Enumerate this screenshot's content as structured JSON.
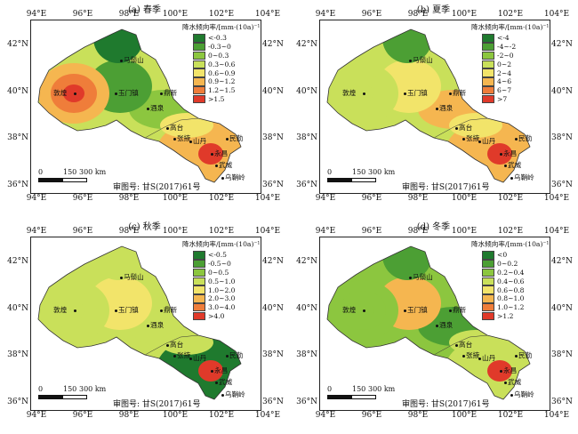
{
  "lon_ticks": [
    "94°E",
    "96°E",
    "98°E",
    "100°E",
    "102°E",
    "104°E"
  ],
  "lat_ticks": [
    "42°N",
    "40°N",
    "38°N",
    "36°N"
  ],
  "scale_labels": [
    "0",
    "150",
    "300 km"
  ],
  "audit_number": "审图号: 甘S(2017)61号",
  "panels": [
    {
      "id": "a",
      "title": "(a) 春季",
      "legend_title": "降水倾向率/[mm·(10a)⁻¹]",
      "legend": [
        {
          "label": "<-0.3",
          "color": "#1f7a2e"
        },
        {
          "label": "-0.3~0",
          "color": "#4c9f34"
        },
        {
          "label": "0~0.3",
          "color": "#8cc63f"
        },
        {
          "label": "0.3~0.6",
          "color": "#c9e05a"
        },
        {
          "label": "0.6~0.9",
          "color": "#f2e46a"
        },
        {
          "label": "0.9~1.2",
          "color": "#f5b650"
        },
        {
          "label": "1.2~1.5",
          "color": "#ef7d3a"
        },
        {
          "label": ">1.5",
          "color": "#e03a2a"
        }
      ],
      "fills": {
        "base": "#c9e05a",
        "northeast": "#1f7a2e",
        "central": "#4c9f34",
        "east_strip": "#f2e46a",
        "hexi": "#8cc63f",
        "southeast": "#f5b650",
        "west_hot_outer": "#f5b650",
        "west_hot_mid": "#ef7d3a",
        "west_hot_core": "#e03a2a",
        "se_hot": "#e03a2a"
      },
      "stations": [
        "马鬃山",
        "玉门镇",
        "敦煌",
        "鼎新",
        "酒泉",
        "高台",
        "张掖",
        "山丹",
        "永昌",
        "民勤",
        "武威",
        "乌鞘岭"
      ]
    },
    {
      "id": "b",
      "title": "(b) 夏季",
      "legend_title": "降水倾向率/[mm·(10a)⁻¹]",
      "legend": [
        {
          "label": "<-4",
          "color": "#1f7a2e"
        },
        {
          "label": "-4~-2",
          "color": "#4c9f34"
        },
        {
          "label": "-2~0",
          "color": "#8cc63f"
        },
        {
          "label": "0~2",
          "color": "#c9e05a"
        },
        {
          "label": "2~4",
          "color": "#f2e46a"
        },
        {
          "label": "4~6",
          "color": "#f5b650"
        },
        {
          "label": "6~7",
          "color": "#ef7d3a"
        },
        {
          "label": ">7",
          "color": "#e03a2a"
        }
      ],
      "fills": {
        "base": "#c9e05a",
        "northeast": "#4c9f34",
        "central": "#f2e46a",
        "east_strip": "#f2e46a",
        "hexi": "#f5b650",
        "southeast": "#f5b650",
        "west_hot_outer": "#c9e05a",
        "west_hot_mid": "#c9e05a",
        "west_hot_core": "#c9e05a",
        "se_hot": "#e03a2a"
      },
      "stations": [
        "马鬃山",
        "玉门镇",
        "敦煌",
        "鼎新",
        "酒泉",
        "高台",
        "张掖",
        "山丹",
        "永昌",
        "民勤",
        "武威",
        "乌鞘岭"
      ]
    },
    {
      "id": "c",
      "title": "(c) 秋季",
      "legend_title": "降水倾向率/[mm·(10a)⁻¹]",
      "legend": [
        {
          "label": "<-0.5",
          "color": "#1f7a2e"
        },
        {
          "label": "-0.5~0",
          "color": "#4c9f34"
        },
        {
          "label": "0~0.5",
          "color": "#8cc63f"
        },
        {
          "label": "0.5~1.0",
          "color": "#c9e05a"
        },
        {
          "label": "1.0~2.0",
          "color": "#f2e46a"
        },
        {
          "label": "2.0~3.0",
          "color": "#f5b650"
        },
        {
          "label": "3.0~4.0",
          "color": "#ef7d3a"
        },
        {
          "label": ">4.0",
          "color": "#e03a2a"
        }
      ],
      "fills": {
        "base": "#c9e05a",
        "northeast": "#c9e05a",
        "central": "#f2e46a",
        "east_strip": "#c9e05a",
        "hexi": "#c9e05a",
        "southeast": "#1f7a2e",
        "west_hot_outer": "#c9e05a",
        "west_hot_mid": "#c9e05a",
        "west_hot_core": "#c9e05a",
        "se_hot": "#e03a2a"
      },
      "stations": [
        "马鬃山",
        "玉门镇",
        "敦煌",
        "鼎新",
        "酒泉",
        "高台",
        "张掖",
        "山丹",
        "永昌",
        "民勤",
        "武威",
        "乌鞘岭"
      ]
    },
    {
      "id": "d",
      "title": "(d) 冬季",
      "legend_title": "降水倾向率/[mm·(10a)⁻¹]",
      "legend": [
        {
          "label": "<0",
          "color": "#1f7a2e"
        },
        {
          "label": "0~0.2",
          "color": "#4c9f34"
        },
        {
          "label": "0.2~0.4",
          "color": "#8cc63f"
        },
        {
          "label": "0.4~0.6",
          "color": "#c9e05a"
        },
        {
          "label": "0.6~0.8",
          "color": "#f2e46a"
        },
        {
          "label": "0.8~1.0",
          "color": "#f5b650"
        },
        {
          "label": "1.0~1.2",
          "color": "#ef7d3a"
        },
        {
          "label": ">1.2",
          "color": "#e03a2a"
        }
      ],
      "fills": {
        "base": "#8cc63f",
        "northeast": "#4c9f34",
        "central": "#f5b650",
        "east_strip": "#c9e05a",
        "hexi": "#4c9f34",
        "southeast": "#c9e05a",
        "west_hot_outer": "#8cc63f",
        "west_hot_mid": "#8cc63f",
        "west_hot_core": "#8cc63f",
        "se_hot": "#e03a2a"
      },
      "stations": [
        "马鬃山",
        "玉门镇",
        "敦煌",
        "鼎新",
        "酒泉",
        "高台",
        "张掖",
        "山丹",
        "永昌",
        "民勤",
        "武威",
        "乌鞘岭"
      ]
    }
  ]
}
